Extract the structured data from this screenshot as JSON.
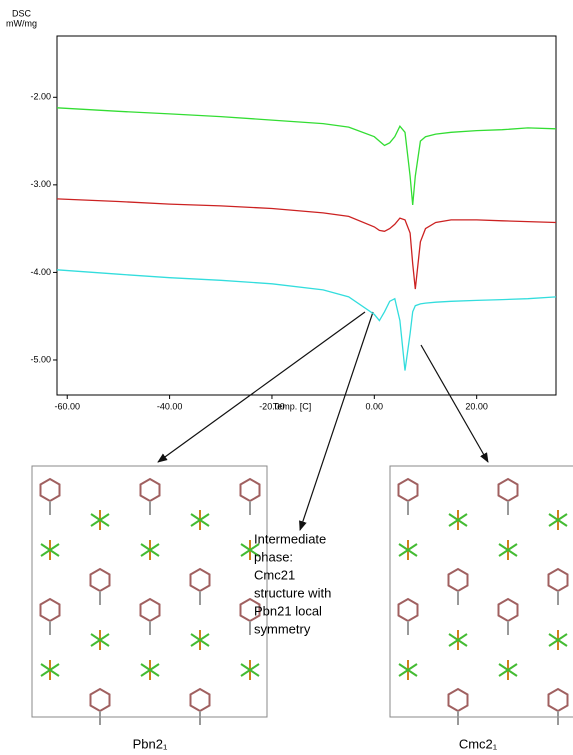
{
  "chart_data": {
    "type": "line",
    "y_label": [
      "DSC",
      "mW/mg"
    ],
    "x_label": "Temp. [C]",
    "x": [
      -62,
      -50,
      -40,
      -30,
      -20,
      -10,
      -5,
      0,
      1,
      2,
      3,
      4,
      5,
      6,
      7,
      7.5,
      8,
      9,
      10,
      12,
      15,
      20,
      25,
      30,
      35.5
    ],
    "series": [
      {
        "color": "#33dd33",
        "values": [
          -2.12,
          -2.16,
          -2.19,
          -2.22,
          -2.26,
          -2.3,
          -2.34,
          -2.45,
          -2.5,
          -2.55,
          -2.52,
          -2.45,
          -2.33,
          -2.4,
          -2.9,
          -3.23,
          -2.9,
          -2.5,
          -2.45,
          -2.42,
          -2.4,
          -2.38,
          -2.37,
          -2.35,
          -2.36
        ]
      },
      {
        "color": "#cc2222",
        "values": [
          -3.16,
          -3.19,
          -3.22,
          -3.24,
          -3.27,
          -3.32,
          -3.36,
          -3.48,
          -3.52,
          -3.53,
          -3.5,
          -3.45,
          -3.38,
          -3.4,
          -3.55,
          -3.9,
          -4.19,
          -3.65,
          -3.5,
          -3.43,
          -3.4,
          -3.4,
          -3.41,
          -3.42,
          -3.43
        ]
      },
      {
        "color": "#33dddd",
        "values": [
          -3.97,
          -4.02,
          -4.06,
          -4.09,
          -4.13,
          -4.2,
          -4.28,
          -4.48,
          -4.55,
          -4.45,
          -4.33,
          -4.3,
          -4.55,
          -5.12,
          -4.7,
          -4.45,
          -4.38,
          -4.36,
          -4.35,
          -4.34,
          -4.33,
          -4.32,
          -4.31,
          -4.3,
          -4.28
        ]
      }
    ],
    "xlim": [
      -62,
      35.5
    ],
    "ylim": [
      -5.4,
      -1.3
    ],
    "xticks": [
      {
        "value": -60,
        "label": "-60.00"
      },
      {
        "value": -40,
        "label": "-40.00"
      },
      {
        "value": -20,
        "label": "-20.00"
      },
      {
        "value": 0,
        "label": "0.00"
      },
      {
        "value": 20,
        "label": "20.00"
      }
    ],
    "yticks": [
      {
        "value": -5,
        "label": "-5.00"
      },
      {
        "value": -4,
        "label": "-4.00"
      },
      {
        "value": -3,
        "label": "-3.00"
      },
      {
        "value": -2,
        "label": "-2.00"
      }
    ]
  },
  "annotation": [
    "Intermediate",
    "phase:",
    "Cmc21",
    "structure with",
    "Pbn21 local",
    "symmetry"
  ],
  "panels": [
    {
      "caption": "Pbn2₁"
    },
    {
      "caption": "Cmc2₁"
    }
  ]
}
